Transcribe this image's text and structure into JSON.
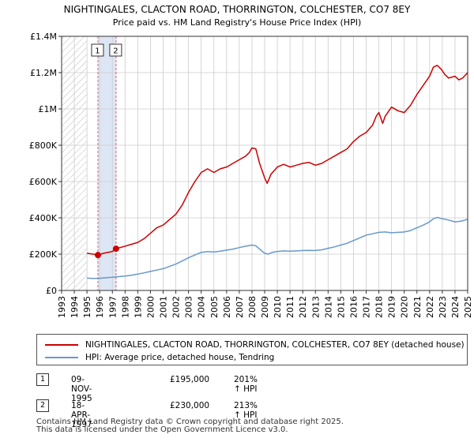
{
  "colors": {
    "property": "#cc0000",
    "hpi": "#6699cc",
    "grid": "#cccccc",
    "hatch": "#bbbbbb",
    "highlight": "#dde6f5"
  },
  "chart_data": {
    "type": "line",
    "title": "NIGHTINGALES, CLACTON ROAD, THORRINGTON, COLCHESTER, CO7 8EY",
    "subtitle": "Price paid vs. HM Land Registry's House Price Index (HPI)",
    "xlabel": "",
    "ylabel": "",
    "xlim": [
      1993,
      2025
    ],
    "ylim": [
      0,
      1400000
    ],
    "x_ticks": [
      "1993",
      "1994",
      "1995",
      "1996",
      "1997",
      "1998",
      "1999",
      "2000",
      "2001",
      "2002",
      "2003",
      "2004",
      "2005",
      "2006",
      "2007",
      "2008",
      "2009",
      "2010",
      "2011",
      "2012",
      "2013",
      "2014",
      "2015",
      "2016",
      "2017",
      "2018",
      "2019",
      "2020",
      "2021",
      "2022",
      "2023",
      "2024",
      "2025"
    ],
    "y_ticks": [
      {
        "value": 0,
        "label": "£0"
      },
      {
        "value": 200000,
        "label": "£200K"
      },
      {
        "value": 400000,
        "label": "£400K"
      },
      {
        "value": 600000,
        "label": "£600K"
      },
      {
        "value": 800000,
        "label": "£800K"
      },
      {
        "value": 1000000,
        "label": "£1M"
      },
      {
        "value": 1200000,
        "label": "£1.2M"
      },
      {
        "value": 1400000,
        "label": "£1.4M"
      }
    ],
    "grid": true,
    "hatched_range": [
      1993,
      1995.0
    ],
    "highlight_range": [
      1995.86,
      1997.29
    ],
    "series": [
      {
        "name": "NIGHTINGALES, CLACTON ROAD, THORRINGTON, COLCHESTER, CO7 8EY (detached house)",
        "color": "#cc0000",
        "x": [
          1995.0,
          1995.5,
          1995.86,
          1996.3,
          1997.0,
          1997.29,
          1997.8,
          1998.3,
          1999.0,
          1999.5,
          2000.0,
          2000.5,
          2001.0,
          2001.5,
          2002.0,
          2002.5,
          2003.0,
          2003.5,
          2004.0,
          2004.5,
          2005.0,
          2005.5,
          2006.0,
          2006.5,
          2007.0,
          2007.5,
          2007.8,
          2008.0,
          2008.3,
          2008.6,
          2009.0,
          2009.2,
          2009.5,
          2010.0,
          2010.5,
          2011.0,
          2011.5,
          2012.0,
          2012.5,
          2013.0,
          2013.5,
          2014.0,
          2014.5,
          2015.0,
          2015.5,
          2016.0,
          2016.5,
          2017.0,
          2017.5,
          2017.8,
          2018.0,
          2018.3,
          2018.5,
          2019.0,
          2019.5,
          2020.0,
          2020.5,
          2021.0,
          2021.5,
          2022.0,
          2022.3,
          2022.6,
          2022.9,
          2023.2,
          2023.5,
          2024.0,
          2024.3,
          2024.6,
          2025.0
        ],
        "values": [
          205000,
          200000,
          195000,
          205000,
          215000,
          230000,
          240000,
          250000,
          265000,
          285000,
          315000,
          345000,
          360000,
          390000,
          420000,
          470000,
          540000,
          600000,
          650000,
          670000,
          650000,
          670000,
          680000,
          700000,
          720000,
          740000,
          760000,
          785000,
          780000,
          700000,
          620000,
          590000,
          640000,
          680000,
          695000,
          680000,
          690000,
          700000,
          705000,
          690000,
          700000,
          720000,
          740000,
          760000,
          780000,
          820000,
          850000,
          870000,
          910000,
          960000,
          980000,
          920000,
          960000,
          1010000,
          990000,
          980000,
          1020000,
          1080000,
          1130000,
          1180000,
          1230000,
          1240000,
          1220000,
          1190000,
          1170000,
          1180000,
          1160000,
          1170000,
          1200000
        ]
      },
      {
        "name": "HPI: Average price, detached house, Tendring",
        "color": "#6699cc",
        "x": [
          1995.0,
          1995.5,
          1996.0,
          1996.5,
          1997.0,
          1997.5,
          1998.0,
          1998.5,
          1999.0,
          1999.5,
          2000.0,
          2000.5,
          2001.0,
          2001.5,
          2002.0,
          2002.5,
          2003.0,
          2003.5,
          2004.0,
          2004.5,
          2005.0,
          2005.5,
          2006.0,
          2006.5,
          2007.0,
          2007.5,
          2008.0,
          2008.3,
          2008.6,
          2009.0,
          2009.3,
          2009.6,
          2010.0,
          2010.5,
          2011.0,
          2011.5,
          2012.0,
          2012.5,
          2013.0,
          2013.5,
          2014.0,
          2014.5,
          2015.0,
          2015.5,
          2016.0,
          2016.5,
          2017.0,
          2017.5,
          2018.0,
          2018.5,
          2019.0,
          2019.5,
          2020.0,
          2020.5,
          2021.0,
          2021.5,
          2022.0,
          2022.3,
          2022.6,
          2023.0,
          2023.5,
          2024.0,
          2024.5,
          2025.0
        ],
        "values": [
          68000,
          66000,
          67000,
          70000,
          73000,
          76000,
          79000,
          84000,
          90000,
          97000,
          105000,
          112000,
          120000,
          132000,
          145000,
          162000,
          180000,
          195000,
          210000,
          214000,
          212000,
          216000,
          222000,
          228000,
          236000,
          244000,
          250000,
          246000,
          228000,
          205000,
          200000,
          210000,
          215000,
          218000,
          216000,
          218000,
          220000,
          221000,
          220000,
          224000,
          232000,
          240000,
          250000,
          260000,
          275000,
          290000,
          305000,
          312000,
          320000,
          322000,
          318000,
          320000,
          322000,
          330000,
          345000,
          360000,
          378000,
          395000,
          402000,
          395000,
          388000,
          378000,
          382000,
          392000
        ]
      }
    ],
    "sales": [
      {
        "marker": "1",
        "x": 1995.86,
        "y": 195000,
        "date": "09-NOV-1995",
        "price": "£195,000",
        "hpi": "201% ↑ HPI"
      },
      {
        "marker": "2",
        "x": 1997.29,
        "y": 230000,
        "date": "18-APR-1997",
        "price": "£230,000",
        "hpi": "213% ↑ HPI"
      }
    ]
  },
  "legend": [
    {
      "label": "NIGHTINGALES, CLACTON ROAD, THORRINGTON, COLCHESTER, CO7 8EY (detached house)",
      "color": "#cc0000"
    },
    {
      "label": "HPI: Average price, detached house, Tendring",
      "color": "#6699cc"
    }
  ],
  "footer": {
    "line1": "Contains HM Land Registry data © Crown copyright and database right 2025.",
    "line2": "This data is licensed under the Open Government Licence v3.0."
  }
}
